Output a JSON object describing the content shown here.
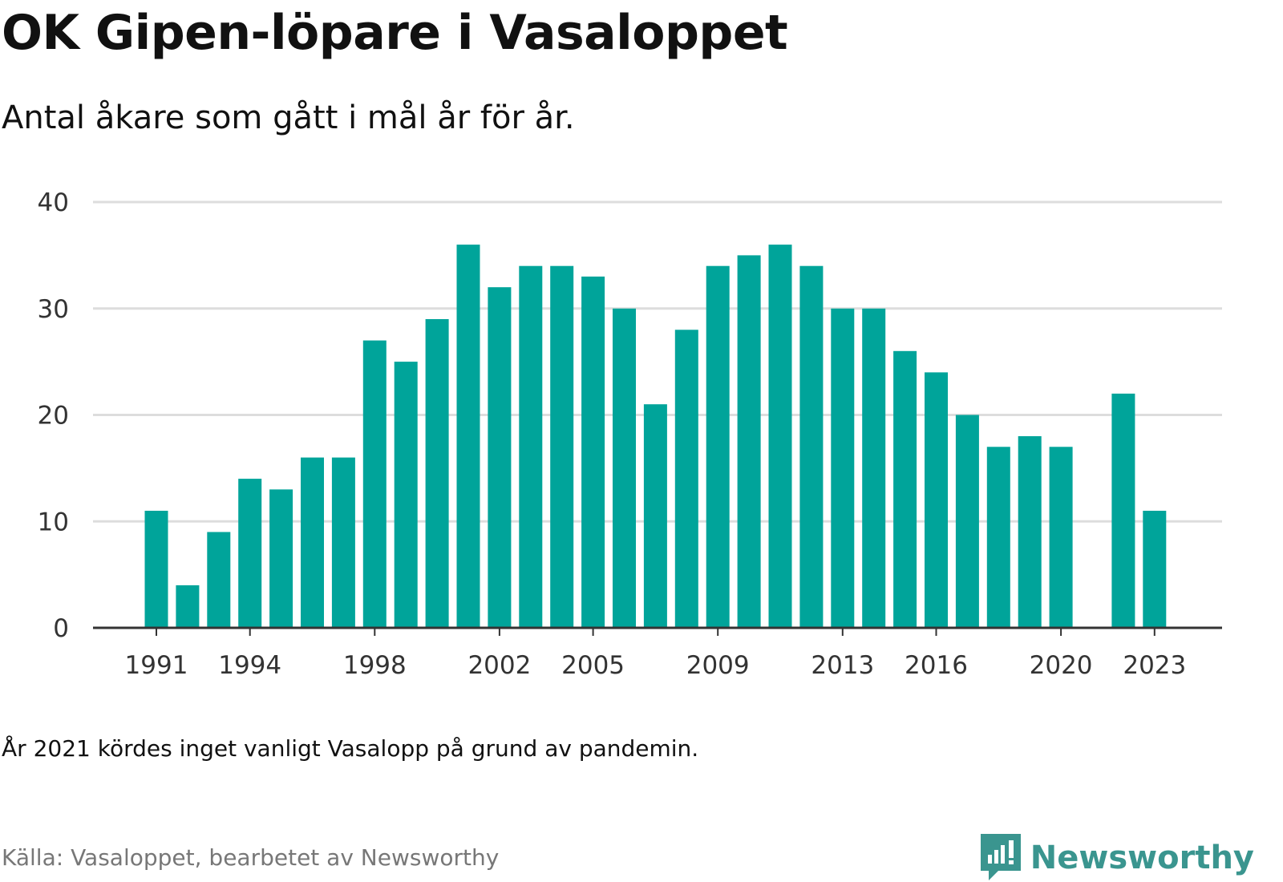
{
  "header": {
    "title": "OK Gipen-löpare i Vasaloppet",
    "subtitle": "Antal åkare som gått i mål år för år."
  },
  "chart_data": {
    "type": "bar",
    "x": [
      1991,
      1992,
      1993,
      1994,
      1995,
      1996,
      1997,
      1998,
      1999,
      2000,
      2001,
      2002,
      2003,
      2004,
      2005,
      2006,
      2007,
      2008,
      2009,
      2010,
      2011,
      2012,
      2013,
      2014,
      2015,
      2016,
      2017,
      2018,
      2019,
      2020,
      2021,
      2022,
      2023
    ],
    "values": [
      11,
      4,
      9,
      14,
      13,
      16,
      16,
      27,
      25,
      29,
      36,
      32,
      34,
      34,
      33,
      30,
      21,
      28,
      34,
      35,
      36,
      34,
      30,
      30,
      26,
      24,
      20,
      17,
      18,
      17,
      null,
      22,
      11
    ],
    "y_ticks": [
      0,
      10,
      20,
      30,
      40
    ],
    "x_tick_labels": [
      1991,
      1994,
      1998,
      2002,
      2005,
      2009,
      2013,
      2016,
      2020,
      2023
    ],
    "ylim": [
      0,
      40
    ],
    "grid": true,
    "bar_color": "#00a49a"
  },
  "footer": {
    "note": "År 2021 kördes inget vanligt Vasalopp på grund av pandemin.",
    "source": "Källa: Vasaloppet, bearbetet av Newsworthy",
    "brand": "Newsworthy",
    "brand_icon": "newsworthy-logo-icon",
    "brand_color": "#3a958f"
  }
}
